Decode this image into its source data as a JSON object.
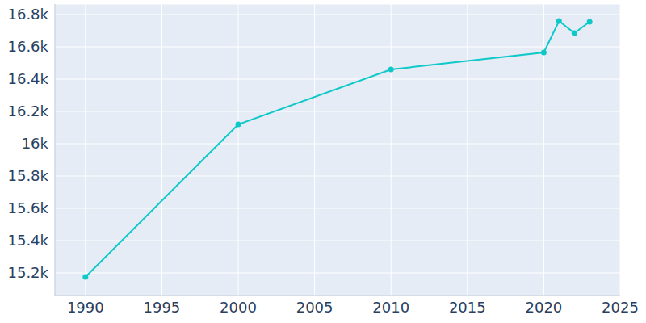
{
  "chart_data": {
    "type": "line",
    "x": [
      1990,
      2000,
      2010,
      2020,
      2021,
      2022,
      2023
    ],
    "values": [
      15175,
      16120,
      16460,
      16565,
      16760,
      16685,
      16755
    ],
    "color": "#0fc8c8",
    "marker": "circle",
    "xlim": [
      1988,
      2025
    ],
    "xticks": [
      1990,
      1995,
      2000,
      2005,
      2010,
      2015,
      2020,
      2025
    ],
    "ylim": [
      15060,
      16865
    ],
    "yticks": [
      {
        "value": 15200,
        "label": "15.2k"
      },
      {
        "value": 15400,
        "label": "15.4k"
      },
      {
        "value": 15600,
        "label": "15.6k"
      },
      {
        "value": 15800,
        "label": "15.8k"
      },
      {
        "value": 16000,
        "label": "16k"
      },
      {
        "value": 16200,
        "label": "16.2k"
      },
      {
        "value": 16400,
        "label": "16.4k"
      },
      {
        "value": 16600,
        "label": "16.6k"
      },
      {
        "value": 16800,
        "label": "16.8k"
      }
    ],
    "grid": true
  }
}
